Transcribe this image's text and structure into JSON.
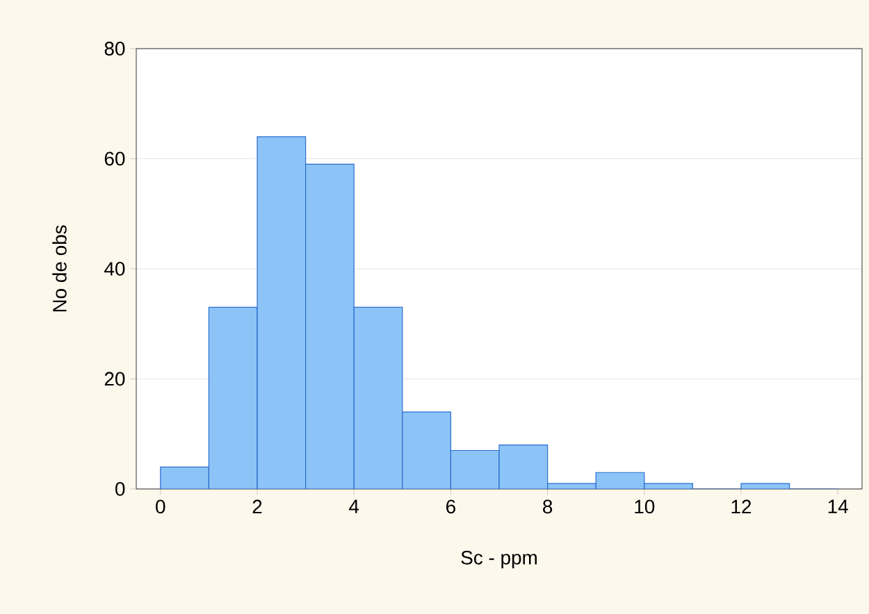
{
  "chart_data": {
    "type": "histogram",
    "xlabel": "Sc - ppm",
    "ylabel": "No de obs",
    "bins": [
      0,
      1,
      2,
      3,
      4,
      5,
      6,
      7,
      8,
      9,
      10,
      11,
      12,
      13,
      14
    ],
    "values": [
      4,
      33,
      64,
      59,
      33,
      14,
      7,
      8,
      1,
      3,
      1,
      0,
      1,
      0
    ],
    "color": "#8cc4f7",
    "xlim": [
      -0.5,
      14.5
    ],
    "ylim": [
      0,
      80
    ],
    "xticks": [
      0,
      2,
      4,
      6,
      8,
      10,
      12,
      14
    ],
    "yticks": [
      0,
      20,
      40,
      60,
      80
    ],
    "grid": "y"
  }
}
